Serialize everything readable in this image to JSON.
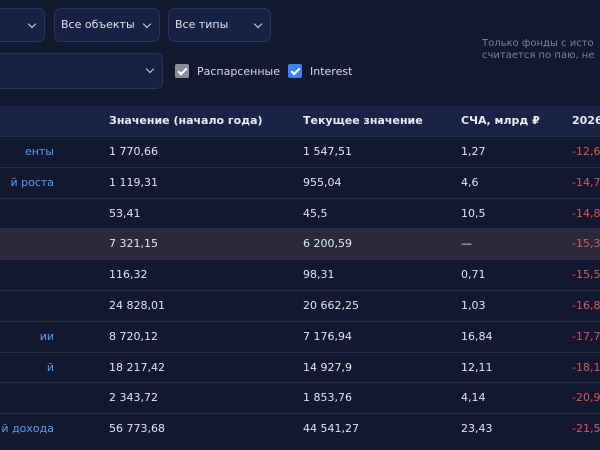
{
  "filters": {
    "selects": [
      "Все объекты",
      "Все типы"
    ],
    "checkboxes": [
      {
        "label": "Распарсенные",
        "checked": true,
        "color": "#8a8f9c"
      },
      {
        "label": "Interest",
        "checked": true,
        "color": "#3b82f6"
      }
    ],
    "note": [
      "Только фонды с исто",
      "считается по паю, не"
    ]
  },
  "table": {
    "headers": [
      null,
      "Значение (начало года)",
      "Текущее значение",
      "СЧА, млрд ₽",
      "2026"
    ],
    "highlight_row": 3,
    "rows": [
      [
        "енты",
        "1 770,66",
        "1 547,51",
        "1,27",
        "-12,6"
      ],
      [
        "й роста",
        "1 119,31",
        "955,04",
        "4,6",
        "-14,7"
      ],
      [
        null,
        "53,41",
        "45,5",
        "10,5",
        "-14,8"
      ],
      [
        null,
        "7 321,15",
        "6 200,59",
        "—",
        "-15,3"
      ],
      [
        null,
        "116,32",
        "98,31",
        "0,71",
        "-15,5"
      ],
      [
        null,
        "24 828,01",
        "20 662,25",
        "1,03",
        "-16,8"
      ],
      [
        "ии",
        "8 720,12",
        "7 176,94",
        "16,84",
        "-17,7"
      ],
      [
        "й",
        "18 217,42",
        "14 927,9",
        "12,11",
        "-18,1"
      ],
      [
        null,
        "2 343,72",
        "1 853,76",
        "4,14",
        "-20,9"
      ],
      [
        "й дохода",
        "56 773,68",
        "44 541,27",
        "23,43",
        "-21,5"
      ]
    ]
  }
}
